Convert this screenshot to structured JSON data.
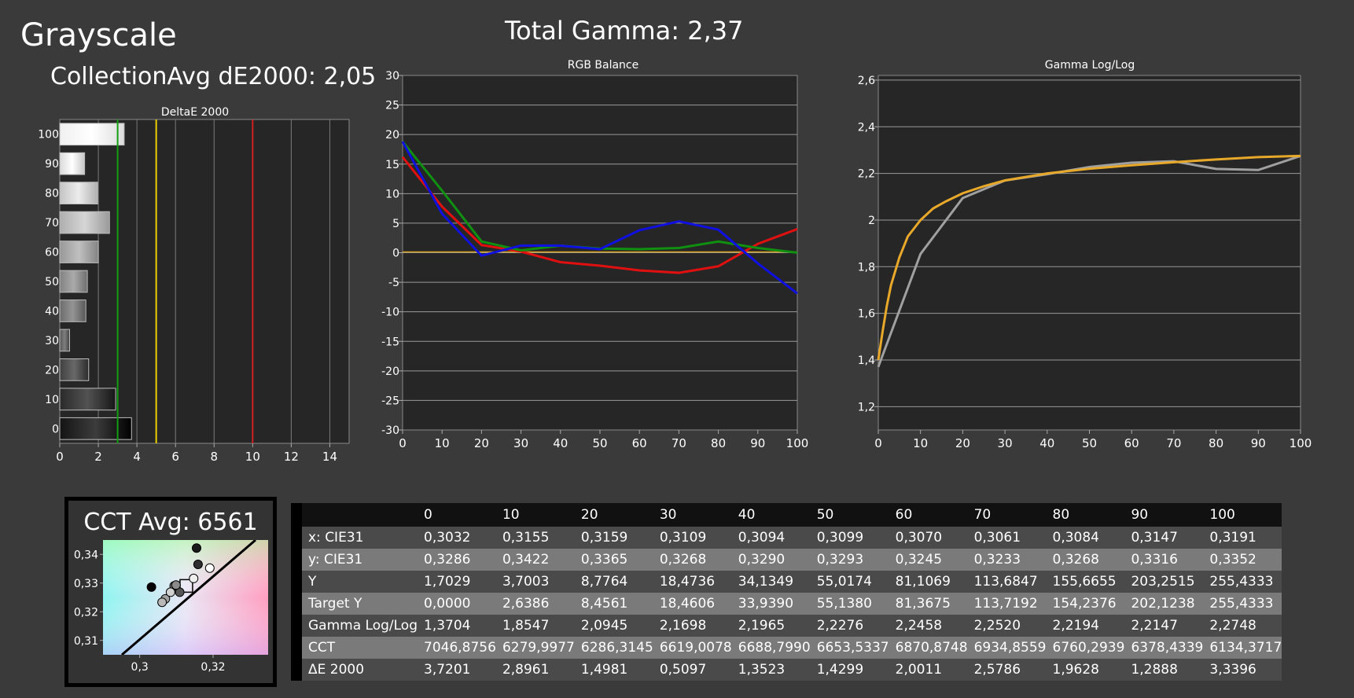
{
  "header": {
    "title": "Grayscale",
    "collection_avg": "CollectionAvg dE2000: 2,05",
    "total_gamma": "Total Gamma: 2,37"
  },
  "cct": {
    "title": "CCT Avg: 6561",
    "y_ticks": [
      "0,34",
      "0,33",
      "0,32",
      "0,31"
    ],
    "x_ticks": [
      "0,3",
      "0,32"
    ]
  },
  "colors": {
    "red": "#e01010",
    "green": "#109010",
    "blue": "#1010e0",
    "gamma_target": "#e8a92a",
    "gamma_measured": "#a0a0a0",
    "threshold_green": "#10a010",
    "threshold_yellow": "#e8d000",
    "threshold_red": "#d02020"
  },
  "chart_data": [
    {
      "type": "bar",
      "title": "DeltaE 2000",
      "orientation": "horizontal",
      "categories": [
        "0",
        "10",
        "20",
        "30",
        "40",
        "50",
        "60",
        "70",
        "80",
        "90",
        "100"
      ],
      "values": [
        3.7201,
        2.8961,
        1.4981,
        0.5097,
        1.3523,
        1.4299,
        2.0011,
        2.5786,
        1.9628,
        1.2888,
        3.3396
      ],
      "xlim": [
        0,
        15
      ],
      "x_ticks": [
        "0",
        "2",
        "4",
        "6",
        "8",
        "10",
        "12",
        "14"
      ],
      "thresholds": [
        3,
        5,
        10
      ],
      "grid": true
    },
    {
      "type": "line",
      "title": "RGB Balance",
      "x": [
        0,
        10,
        20,
        30,
        40,
        50,
        60,
        70,
        80,
        90,
        100
      ],
      "ylim": [
        -30,
        30
      ],
      "y_ticks": [
        "30",
        "25",
        "20",
        "15",
        "10",
        "5",
        "0",
        "-5",
        "-10",
        "-15",
        "-20",
        "-25",
        "-30"
      ],
      "x_ticks": [
        "0",
        "10",
        "20",
        "30",
        "40",
        "50",
        "60",
        "70",
        "80",
        "90",
        "100"
      ],
      "series": [
        {
          "color": "red",
          "values": [
            16.2,
            7.8,
            1.3,
            0.2,
            -1.6,
            -2.2,
            -3.0,
            -3.4,
            -2.3,
            1.5,
            4.0
          ]
        },
        {
          "color": "green",
          "values": [
            18.8,
            10.5,
            1.9,
            0.4,
            1.2,
            0.7,
            0.6,
            0.8,
            1.9,
            0.8,
            0.0
          ]
        },
        {
          "color": "blue",
          "values": [
            18.8,
            6.6,
            -0.5,
            1.2,
            1.2,
            0.6,
            3.8,
            5.3,
            3.9,
            -1.8,
            -6.9
          ]
        }
      ],
      "grid": true
    },
    {
      "type": "line",
      "title": "Gamma Log/Log",
      "x": [
        0,
        10,
        20,
        30,
        40,
        50,
        60,
        70,
        80,
        90,
        100
      ],
      "ylim": [
        1.1,
        2.62
      ],
      "y_ticks": [
        "2,6",
        "2,4",
        "2,2",
        "2",
        "1,8",
        "1,6",
        "1,4",
        "1,2"
      ],
      "x_ticks": [
        "0",
        "10",
        "20",
        "30",
        "40",
        "50",
        "60",
        "70",
        "80",
        "90",
        "100"
      ],
      "series": [
        {
          "color": "gamma_measured",
          "values": [
            1.3704,
            1.8547,
            2.0945,
            2.1698,
            2.1965,
            2.2276,
            2.2458,
            2.252,
            2.2194,
            2.2147,
            2.2748
          ]
        },
        {
          "color": "gamma_target",
          "x": [
            0,
            1,
            2,
            3,
            5,
            7,
            10,
            13,
            16,
            20,
            25,
            30,
            40,
            50,
            60,
            70,
            80,
            90,
            100
          ],
          "values": [
            1.4,
            1.52,
            1.63,
            1.72,
            1.84,
            1.93,
            2.0,
            2.05,
            2.08,
            2.115,
            2.145,
            2.17,
            2.2,
            2.22,
            2.235,
            2.248,
            2.26,
            2.27,
            2.275
          ]
        }
      ],
      "grid": true
    },
    {
      "type": "scatter",
      "title": "CCT Avg: 6561",
      "xlim": [
        0.29,
        0.335
      ],
      "ylim": [
        0.305,
        0.345
      ],
      "points": [
        {
          "x": 0.3032,
          "y": 0.3286,
          "fill": "#050505"
        },
        {
          "x": 0.3155,
          "y": 0.3422,
          "fill": "#1a1a1a"
        },
        {
          "x": 0.3159,
          "y": 0.3365,
          "fill": "#2e2e2e"
        },
        {
          "x": 0.3109,
          "y": 0.3268,
          "fill": "#555555"
        },
        {
          "x": 0.3094,
          "y": 0.329,
          "fill": "#777777"
        },
        {
          "x": 0.3099,
          "y": 0.3293,
          "fill": "#8a8a8a"
        },
        {
          "x": 0.307,
          "y": 0.3245,
          "fill": "#a0a0a0"
        },
        {
          "x": 0.3061,
          "y": 0.3233,
          "fill": "#b8b8b8"
        },
        {
          "x": 0.3084,
          "y": 0.3268,
          "fill": "#d0d0d0"
        },
        {
          "x": 0.3147,
          "y": 0.3316,
          "fill": "#eeeeee"
        },
        {
          "x": 0.3191,
          "y": 0.3352,
          "fill": "#ffffff"
        }
      ],
      "target": {
        "x": 0.3127,
        "y": 0.329
      }
    }
  ],
  "table": {
    "headers": [
      "",
      "0",
      "10",
      "20",
      "30",
      "40",
      "50",
      "60",
      "70",
      "80",
      "90",
      "100"
    ],
    "rows": [
      {
        "label": "x: CIE31",
        "values": [
          "0,3032",
          "0,3155",
          "0,3159",
          "0,3109",
          "0,3094",
          "0,3099",
          "0,3070",
          "0,3061",
          "0,3084",
          "0,3147",
          "0,3191"
        ]
      },
      {
        "label": "y: CIE31",
        "values": [
          "0,3286",
          "0,3422",
          "0,3365",
          "0,3268",
          "0,3290",
          "0,3293",
          "0,3245",
          "0,3233",
          "0,3268",
          "0,3316",
          "0,3352"
        ]
      },
      {
        "label": "Y",
        "values": [
          "1,7029",
          "3,7003",
          "8,7764",
          "18,4736",
          "34,1349",
          "55,0174",
          "81,1069",
          "113,6847",
          "155,6655",
          "203,2515",
          "255,4333"
        ]
      },
      {
        "label": "Target Y",
        "values": [
          "0,0000",
          "2,6386",
          "8,4561",
          "18,4606",
          "33,9390",
          "55,1380",
          "81,3675",
          "113,7192",
          "154,2376",
          "202,1238",
          "255,4333"
        ]
      },
      {
        "label": "Gamma Log/Log",
        "values": [
          "1,3704",
          "1,8547",
          "2,0945",
          "2,1698",
          "2,1965",
          "2,2276",
          "2,2458",
          "2,2520",
          "2,2194",
          "2,2147",
          "2,2748"
        ]
      },
      {
        "label": "CCT",
        "values": [
          "7046,8756",
          "6279,9977",
          "6286,3145",
          "6619,0078",
          "6688,7990",
          "6653,5337",
          "6870,8748",
          "6934,8559",
          "6760,2939",
          "6378,4339",
          "6134,3717"
        ]
      },
      {
        "label": "ΔE 2000",
        "values": [
          "3,7201",
          "2,8961",
          "1,4981",
          "0,5097",
          "1,3523",
          "1,4299",
          "2,0011",
          "2,5786",
          "1,9628",
          "1,2888",
          "3,3396"
        ]
      }
    ]
  }
}
